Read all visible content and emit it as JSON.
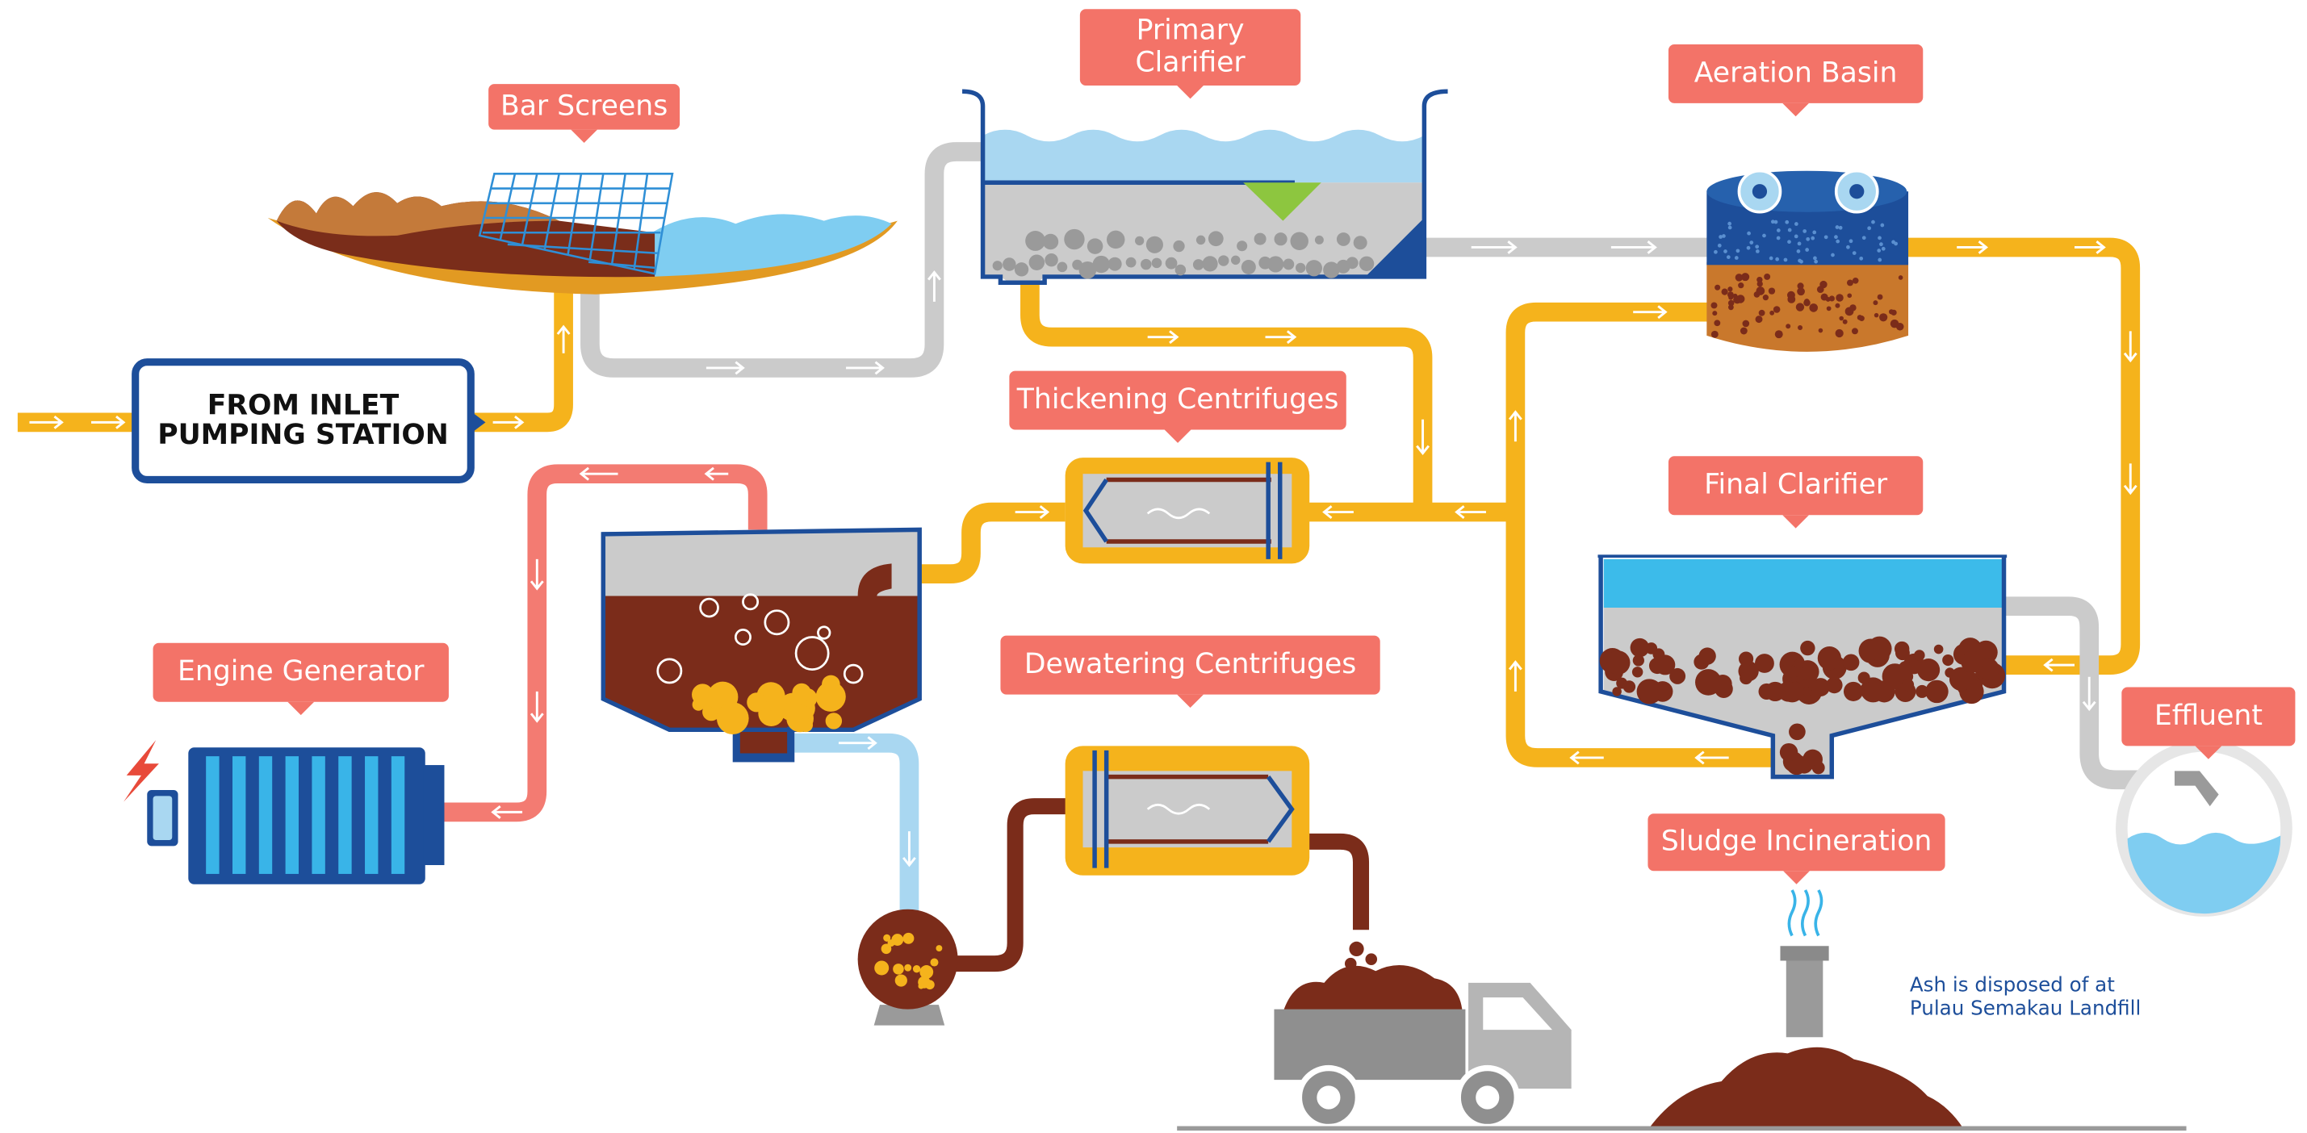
{
  "inlet": {
    "lines": [
      "FROM INLET",
      "PUMPING STATION"
    ]
  },
  "callouts": [
    {
      "lines": [
        "Bar Screens"
      ]
    },
    {
      "lines": [
        "Primary",
        "Clarifier"
      ]
    },
    {
      "lines": [
        "Aeration Basin"
      ]
    },
    {
      "lines": [
        "Thickening Centrifuges"
      ]
    },
    {
      "lines": [
        "Final Clarifier"
      ]
    },
    {
      "lines": [
        "Engine Generator"
      ]
    },
    {
      "lines": [
        "Dewatering Centrifuges"
      ]
    },
    {
      "lines": [
        "Effluent"
      ]
    },
    {
      "lines": [
        "Sludge Incineration"
      ]
    }
  ],
  "note": {
    "lines": [
      "Ash is disposed of at",
      "Pulau Semakau Landfill"
    ]
  }
}
